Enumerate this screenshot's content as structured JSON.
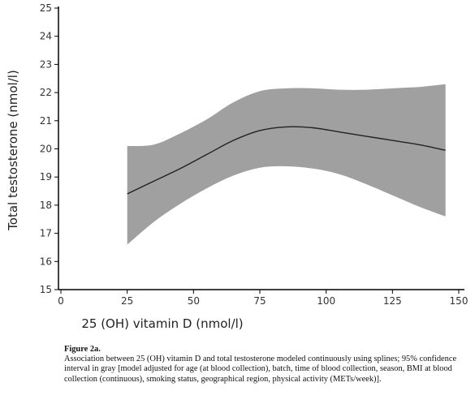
{
  "chart_data": {
    "type": "line",
    "xlabel": "25 (OH) vitamin D (nmol/l)",
    "ylabel": "Total testosterone (nmol/l)",
    "xlim": [
      0,
      150
    ],
    "ylim": [
      15,
      25
    ],
    "xticks": [
      "0",
      "25",
      "50",
      "75",
      "100",
      "125",
      "150"
    ],
    "yticks": [
      "15",
      "16",
      "17",
      "18",
      "19",
      "20",
      "21",
      "22",
      "23",
      "24",
      "25"
    ],
    "grid": false,
    "series": [
      {
        "x": [
          25,
          35,
          45,
          55,
          65,
          75,
          85,
          95,
          105,
          115,
          125,
          135,
          145
        ],
        "y": [
          18.4,
          18.85,
          19.3,
          19.8,
          20.3,
          20.65,
          20.78,
          20.75,
          20.6,
          20.45,
          20.3,
          20.15,
          19.95
        ],
        "band_lower": [
          16.6,
          17.4,
          18.05,
          18.6,
          19.05,
          19.33,
          19.38,
          19.3,
          19.1,
          18.75,
          18.35,
          17.95,
          17.6
        ],
        "band_upper": [
          20.1,
          20.15,
          20.55,
          21.05,
          21.65,
          22.05,
          22.15,
          22.15,
          22.1,
          22.1,
          22.15,
          22.2,
          22.3
        ]
      }
    ],
    "colors": {
      "line": "#222222",
      "band": "#a0a0a0",
      "axis": "#000000"
    }
  },
  "caption": {
    "title": "Figure 2a.",
    "text": "Association between 25 (OH) vitamin D and total testosterone modeled continuously using splines; 95% confidence interval in gray [model adjusted for age (at blood collection), batch, time of blood collection, season, BMI at blood collection (continuous), smoking status, geographical region, physical activity (METs/week)]."
  }
}
